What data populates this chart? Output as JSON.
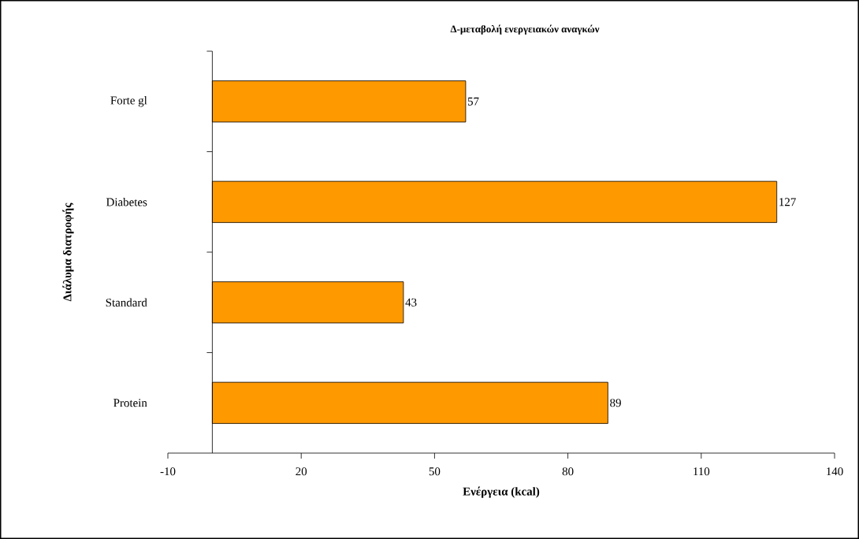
{
  "chart_data": {
    "type": "bar",
    "orientation": "horizontal",
    "title": "Δ-μεταβολή ενεργειακών αναγκών",
    "xlabel": "Ενέργεια (kcal)",
    "ylabel": "Διάλυμα διατροφής",
    "categories": [
      "Forte gl",
      "Diabetes",
      "Standard",
      "Protein"
    ],
    "values": [
      57,
      127,
      43,
      89
    ],
    "color": "#ff9900",
    "data_labels": true,
    "xlim": [
      -10,
      140
    ],
    "xticks": [
      -10,
      20,
      50,
      80,
      110,
      140
    ]
  }
}
